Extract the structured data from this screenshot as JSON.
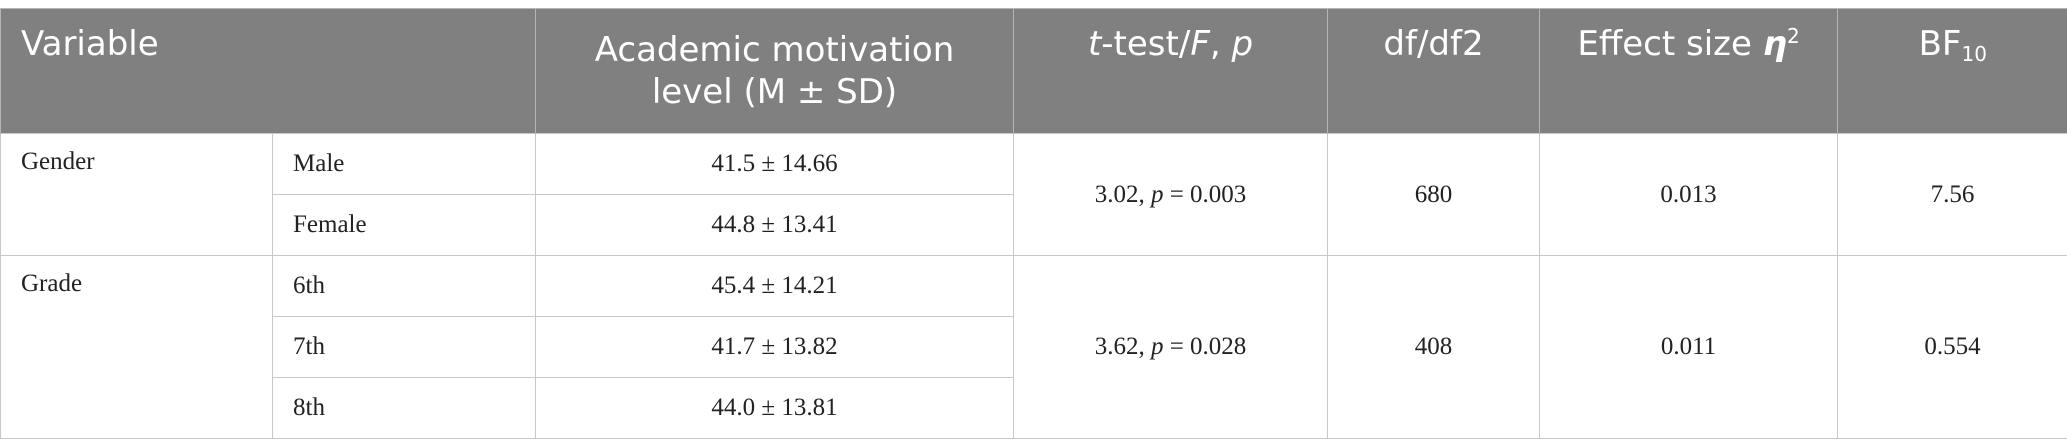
{
  "header": {
    "variable": "Variable",
    "motivation_line1": "Academic motivation",
    "motivation_line2": "level (M ± SD)",
    "ttest_t": "t",
    "ttest_mid": "-test/",
    "ttest_F": "F",
    "ttest_sep": ", ",
    "ttest_p": "p",
    "df": "df/df2",
    "effect_text": "Effect size ",
    "effect_symbol": "η",
    "effect_sup": "2",
    "bf_main": "BF",
    "bf_sub": "10"
  },
  "groups": [
    {
      "name": "Gender",
      "rows": [
        {
          "label": "Male",
          "motivation": "41.5 ± 14.66"
        },
        {
          "label": "Female",
          "motivation": "44.8 ± 13.41"
        }
      ],
      "stat": "3.02, ",
      "p_symbol": "p",
      "p_value": " = 0.003",
      "df": "680",
      "effect": "0.013",
      "bf": "7.56"
    },
    {
      "name": "Grade",
      "rows": [
        {
          "label": "6th",
          "motivation": "45.4 ± 14.21"
        },
        {
          "label": "7th",
          "motivation": "41.7 ± 13.82"
        },
        {
          "label": "8th",
          "motivation": "44.0 ± 13.81"
        }
      ],
      "stat": "3.62, ",
      "p_symbol": "p",
      "p_value": " = 0.028",
      "df": "408",
      "effect": "0.011",
      "bf": "0.554"
    }
  ]
}
